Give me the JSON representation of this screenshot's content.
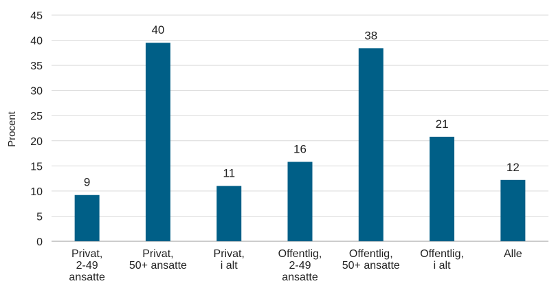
{
  "chart_data": {
    "type": "bar",
    "categories": [
      [
        "Privat,",
        "2-49",
        "ansatte"
      ],
      [
        "Privat,",
        "50+ ansatte"
      ],
      [
        "Privat,",
        "i alt"
      ],
      [
        "Offentlig,",
        "2-49",
        "ansatte"
      ],
      [
        "Offentlig,",
        "50+ ansatte"
      ],
      [
        "Offentlig,",
        "i alt"
      ],
      [
        "Alle"
      ]
    ],
    "values": [
      9.2,
      39.5,
      11,
      15.8,
      38.4,
      20.8,
      12.2
    ],
    "data_labels": [
      "9",
      "40",
      "11",
      "16",
      "38",
      "21",
      "12"
    ],
    "title": "",
    "xlabel": "",
    "ylabel": "Procent",
    "ylim": [
      0,
      45
    ],
    "yticks": [
      0,
      5,
      10,
      15,
      20,
      25,
      30,
      35,
      40,
      45
    ],
    "grid": "horizontal",
    "bar_color": "#005f87"
  }
}
